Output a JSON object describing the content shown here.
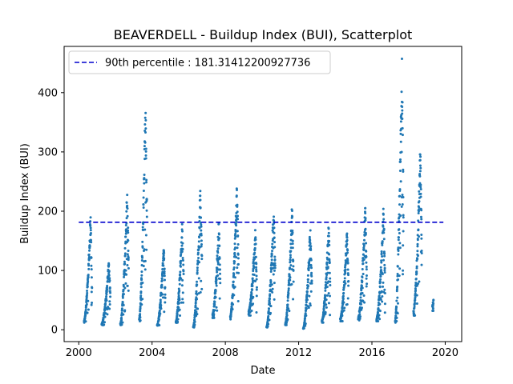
{
  "chart_data": {
    "type": "scatter",
    "title": "BEAVERDELL - Buildup Index (BUI), Scatterplot",
    "xlabel": "Date",
    "ylabel": "Buildup Index (BUI)",
    "xlim": [
      1999.2,
      2020.9
    ],
    "ylim": [
      -20,
      478
    ],
    "x_ticks": [
      "2000",
      "2004",
      "2008",
      "2012",
      "2016",
      "2020"
    ],
    "x_tick_values": [
      2000,
      2004,
      2008,
      2012,
      2016,
      2020
    ],
    "y_ticks": [
      "0",
      "100",
      "200",
      "300",
      "400"
    ],
    "y_tick_values": [
      0,
      100,
      200,
      300,
      400
    ],
    "reference_line": {
      "label": "90th percentile : 181.31412200927736",
      "value": 181.31412200927736,
      "x_range": [
        2000.0,
        2019.9
      ],
      "color": "#0000cd",
      "style": "dashed"
    },
    "legend_position": "upper-left",
    "point_color": "#1f77b4",
    "series": [
      {
        "name": "BUI",
        "seasons": [
          {
            "start": 2000.29,
            "end": 2000.72,
            "min": 15,
            "peak": 190,
            "end_value": 70
          },
          {
            "start": 2001.25,
            "end": 2001.72,
            "min": 10,
            "peak": 112,
            "end_value": 60
          },
          {
            "start": 2002.27,
            "end": 2002.72,
            "min": 10,
            "peak": 234,
            "end_value": 110
          },
          {
            "start": 2003.3,
            "end": 2003.72,
            "min": 18,
            "peak": 387,
            "end_value": 200
          },
          {
            "start": 2004.28,
            "end": 2004.72,
            "min": 8,
            "peak": 138,
            "end_value": 60
          },
          {
            "start": 2005.3,
            "end": 2005.72,
            "min": 15,
            "peak": 178,
            "end_value": 90
          },
          {
            "start": 2006.25,
            "end": 2006.72,
            "min": 5,
            "peak": 234,
            "end_value": 120
          },
          {
            "start": 2007.3,
            "end": 2007.72,
            "min": 25,
            "peak": 180,
            "end_value": 90
          },
          {
            "start": 2008.27,
            "end": 2008.72,
            "min": 22,
            "peak": 245,
            "end_value": 100
          },
          {
            "start": 2009.27,
            "end": 2009.72,
            "min": 30,
            "peak": 168,
            "end_value": 70
          },
          {
            "start": 2010.25,
            "end": 2010.72,
            "min": 5,
            "peak": 205,
            "end_value": 110
          },
          {
            "start": 2011.27,
            "end": 2011.72,
            "min": 10,
            "peak": 203,
            "end_value": 90
          },
          {
            "start": 2012.25,
            "end": 2012.72,
            "min": 2,
            "peak": 170,
            "end_value": 80
          },
          {
            "start": 2013.27,
            "end": 2013.72,
            "min": 15,
            "peak": 176,
            "end_value": 80
          },
          {
            "start": 2014.27,
            "end": 2014.72,
            "min": 18,
            "peak": 166,
            "end_value": 80
          },
          {
            "start": 2015.25,
            "end": 2015.72,
            "min": 20,
            "peak": 205,
            "end_value": 90
          },
          {
            "start": 2016.25,
            "end": 2016.72,
            "min": 18,
            "peak": 205,
            "end_value": 80
          },
          {
            "start": 2017.27,
            "end": 2017.72,
            "min": 15,
            "peak": 457,
            "end_value": 200
          },
          {
            "start": 2018.27,
            "end": 2018.72,
            "min": 30,
            "peak": 302,
            "end_value": 140
          },
          {
            "start": 2019.3,
            "end": 2019.36,
            "min": 40,
            "peak": 52,
            "end_value": 48
          }
        ]
      }
    ]
  }
}
